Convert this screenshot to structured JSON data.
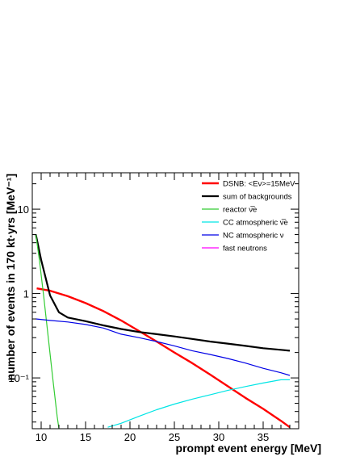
{
  "chart_data": {
    "type": "line",
    "xlabel": "prompt event energy [MeV]",
    "ylabel": "number of events in 170 kt·yrs [MeV⁻¹]",
    "xlim": [
      9,
      39
    ],
    "ylim": [
      0.025,
      27
    ],
    "yscale": "log",
    "x_ticks": [
      10,
      15,
      20,
      25,
      30,
      35
    ],
    "y_ticks": [
      {
        "value": 0.1,
        "label": "10⁻¹"
      },
      {
        "value": 1,
        "label": "1"
      },
      {
        "value": 10,
        "label": "10"
      }
    ],
    "grid": false,
    "legend_position": "top-right",
    "series": [
      {
        "name": "DSNB: <Eν>=15MeV",
        "color": "#ff0000",
        "x": [
          9.5,
          11,
          13,
          15,
          17,
          19,
          21,
          23,
          25,
          27,
          29,
          31,
          33,
          35,
          37,
          38
        ],
        "y": [
          1.15,
          1.08,
          0.93,
          0.77,
          0.62,
          0.48,
          0.36,
          0.27,
          0.2,
          0.15,
          0.11,
          0.08,
          0.058,
          0.043,
          0.031,
          0.026
        ]
      },
      {
        "name": "sum of backgrounds",
        "color": "#000000",
        "x": [
          9.4,
          10,
          11,
          12,
          13,
          15,
          17,
          19,
          21,
          23,
          25,
          27,
          29,
          31,
          33,
          35,
          37,
          38
        ],
        "y": [
          5.0,
          2.5,
          0.95,
          0.6,
          0.52,
          0.47,
          0.42,
          0.38,
          0.35,
          0.33,
          0.31,
          0.29,
          0.27,
          0.255,
          0.24,
          0.225,
          0.215,
          0.21
        ]
      },
      {
        "name": "reactor ν̅e",
        "color": "#33cc33",
        "x": [
          9.4,
          9.8,
          10.3,
          10.8,
          11.3,
          11.8,
          12.0
        ],
        "y": [
          5.0,
          2.5,
          0.9,
          0.3,
          0.1,
          0.035,
          0.025
        ]
      },
      {
        "name": "CC atmospheric ν̅e",
        "color": "#00e5e5",
        "x": [
          17.5,
          19,
          21,
          23,
          25,
          27,
          29,
          31,
          33,
          35,
          37,
          38
        ],
        "y": [
          0.026,
          0.029,
          0.035,
          0.042,
          0.049,
          0.056,
          0.063,
          0.071,
          0.079,
          0.087,
          0.095,
          0.095
        ]
      },
      {
        "name": "NC atmospheric ν",
        "color": "#0000e6",
        "x": [
          9.4,
          11,
          13,
          15,
          17,
          19,
          21,
          23,
          25,
          27,
          29,
          31,
          33,
          35,
          37,
          38
        ],
        "y": [
          0.5,
          0.48,
          0.46,
          0.43,
          0.39,
          0.33,
          0.3,
          0.27,
          0.24,
          0.21,
          0.19,
          0.17,
          0.15,
          0.13,
          0.115,
          0.107
        ]
      },
      {
        "name": "fast neutrons",
        "color": "#ff00ff",
        "x": [],
        "y": []
      }
    ]
  }
}
